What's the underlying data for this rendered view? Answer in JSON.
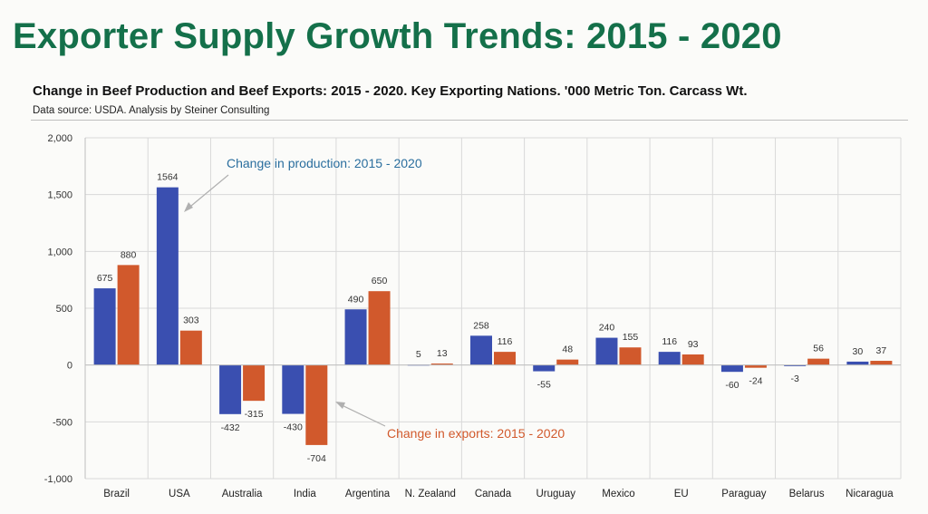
{
  "slide_title": "Exporter Supply Growth Trends: 2015 - 2020",
  "chart_data": {
    "type": "bar",
    "title": "Change in Beef Production and Beef Exports:  2015  - 2020.  Key Exporting Nations.  '000 Metric Ton.  Carcass Wt.",
    "source": "Data source:  USDA.  Analysis by Steiner Consulting",
    "categories": [
      "Brazil",
      "USA",
      "Australia",
      "India",
      "Argentina",
      "N. Zealand",
      "Canada",
      "Uruguay",
      "Mexico",
      "EU",
      "Paraguay",
      "Belarus",
      "Nicaragua"
    ],
    "series": [
      {
        "key": "production",
        "color": "#3a4fb0",
        "values": [
          675,
          1564,
          -432,
          -430,
          490,
          5,
          258,
          -55,
          240,
          116,
          -60,
          -3,
          30
        ],
        "labels": [
          "675",
          "1564",
          "-432",
          "-430",
          "490",
          "5",
          "258",
          "-55",
          "240",
          "116",
          "-60",
          "-3",
          "30"
        ]
      },
      {
        "key": "exports",
        "color": "#d1592c",
        "values": [
          880,
          303,
          -315,
          -704,
          650,
          13,
          116,
          48,
          155,
          93,
          -24,
          56,
          37
        ],
        "labels": [
          "880",
          "303",
          "-315",
          "-704",
          "650",
          "13",
          "116",
          "48",
          "155",
          "93",
          "-24",
          "56",
          "37"
        ]
      }
    ],
    "ylim": [
      -1000,
      2000
    ],
    "yticks": [
      2000,
      1500,
      1000,
      500,
      0,
      -500,
      -1000
    ],
    "ytick_labels": [
      "2,000",
      "1,500",
      "1,000",
      "500",
      "0",
      "-500",
      "-1,000"
    ],
    "grid": true,
    "annotations": [
      {
        "text": "Change in production: 2015 - 2020",
        "color": "#2a6e9e",
        "points_to": "USA production bar"
      },
      {
        "text": "Change in exports: 2015 - 2020",
        "color": "#d1592c",
        "points_to": "India exports bar"
      }
    ]
  }
}
